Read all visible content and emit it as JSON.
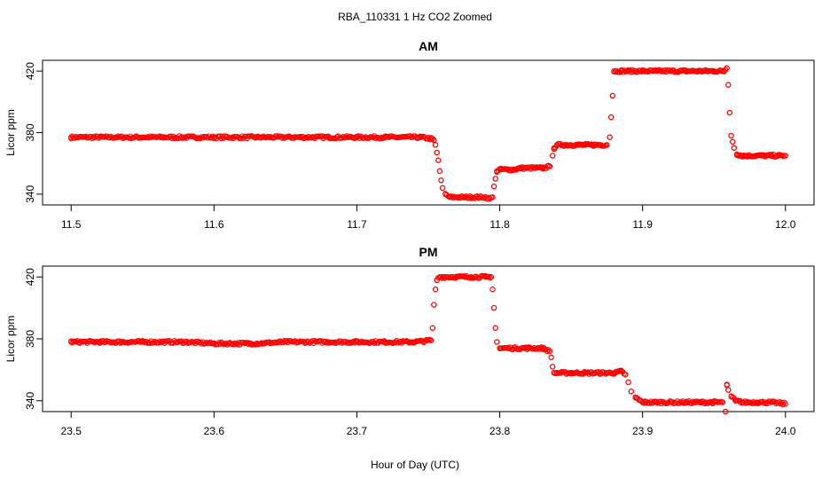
{
  "figure": {
    "title": "RBA_110331  1 Hz CO2 Zoomed",
    "xlabel": "Hour of Day (UTC)"
  },
  "chart_data": [
    {
      "type": "scatter",
      "title": "AM",
      "xlabel": "",
      "ylabel": "Licor ppm",
      "xlim": [
        11.48,
        12.02
      ],
      "ylim": [
        333,
        427
      ],
      "x_ticks": [
        "11.5",
        "11.6",
        "11.7",
        "11.8",
        "11.9",
        "12.0"
      ],
      "y_ticks": [
        "340",
        "380",
        "420"
      ],
      "grid": false,
      "legend": "none",
      "marker": "open-circle",
      "color": "#ff0000",
      "series": [
        {
          "x": [
            11.5,
            11.52,
            11.55,
            11.58,
            11.6,
            11.63,
            11.65,
            11.68,
            11.7,
            11.72,
            11.745,
            11.752,
            11.754,
            11.755,
            11.756,
            11.757,
            11.758,
            11.759,
            11.76,
            11.762,
            11.765,
            11.77,
            11.775,
            11.78,
            11.785,
            11.79,
            11.793,
            11.795,
            11.796,
            11.797,
            11.798,
            11.8,
            11.805,
            11.81,
            11.815,
            11.82,
            11.825,
            11.83,
            11.835,
            11.837,
            11.838,
            11.84,
            11.845,
            11.85,
            11.855,
            11.86,
            11.865,
            11.87,
            11.875,
            11.877,
            11.878,
            11.879,
            11.88,
            11.885,
            11.89,
            11.9,
            11.91,
            11.92,
            11.93,
            11.94,
            11.95,
            11.957,
            11.958,
            11.959,
            11.96,
            11.961,
            11.962,
            11.963,
            11.964,
            11.966,
            11.97,
            11.975,
            11.98,
            11.985,
            11.99,
            11.995,
            12.0
          ],
          "y": [
            377,
            377,
            377,
            377,
            377,
            377,
            377,
            377,
            377,
            377,
            377,
            376,
            375,
            372,
            367,
            362,
            355,
            349,
            344,
            340,
            338,
            338,
            338,
            338,
            338,
            338,
            337,
            338,
            345,
            350,
            355,
            356,
            356,
            356,
            357,
            357,
            357,
            357,
            358,
            365,
            370,
            372,
            372,
            372,
            372,
            372,
            372,
            372,
            372,
            377,
            390,
            404,
            420,
            420,
            420,
            420,
            420,
            420,
            420,
            420,
            420,
            420,
            421,
            422,
            411,
            393,
            378,
            374,
            370,
            366,
            365,
            365,
            365,
            365,
            365,
            365,
            365
          ]
        }
      ]
    },
    {
      "type": "scatter",
      "title": "PM",
      "xlabel": "",
      "ylabel": "Licor ppm",
      "xlim": [
        23.48,
        24.02
      ],
      "ylim": [
        333,
        427
      ],
      "x_ticks": [
        "23.5",
        "23.6",
        "23.7",
        "23.8",
        "23.9",
        "24.0"
      ],
      "y_ticks": [
        "340",
        "380",
        "420"
      ],
      "grid": false,
      "legend": "none",
      "marker": "open-circle",
      "color": "#ff0000",
      "series": [
        {
          "x": [
            23.5,
            23.52,
            23.55,
            23.58,
            23.6,
            23.63,
            23.65,
            23.68,
            23.7,
            23.72,
            23.74,
            23.752,
            23.753,
            23.754,
            23.755,
            23.756,
            23.758,
            23.77,
            23.78,
            23.79,
            23.794,
            23.795,
            23.796,
            23.797,
            23.798,
            23.8,
            23.81,
            23.82,
            23.83,
            23.835,
            23.836,
            23.837,
            23.838,
            23.84,
            23.85,
            23.86,
            23.87,
            23.875,
            23.88,
            23.885,
            23.888,
            23.89,
            23.892,
            23.895,
            23.9,
            23.91,
            23.92,
            23.93,
            23.94,
            23.95,
            23.956,
            23.958,
            23.959,
            23.96,
            23.962,
            23.965,
            23.97,
            23.98,
            23.99,
            24.0
          ],
          "y": [
            378,
            378,
            378,
            378,
            377,
            377,
            378,
            378,
            378,
            378,
            378,
            379,
            387,
            402,
            412,
            418,
            420,
            420,
            420,
            420,
            420,
            412,
            400,
            387,
            378,
            374,
            374,
            374,
            374,
            372,
            368,
            362,
            358,
            358,
            358,
            358,
            358,
            358,
            358,
            359,
            357,
            352,
            346,
            342,
            339,
            339,
            339,
            339,
            339,
            339,
            339,
            333,
            350,
            347,
            343,
            340,
            339,
            339,
            339,
            338
          ]
        }
      ]
    }
  ]
}
